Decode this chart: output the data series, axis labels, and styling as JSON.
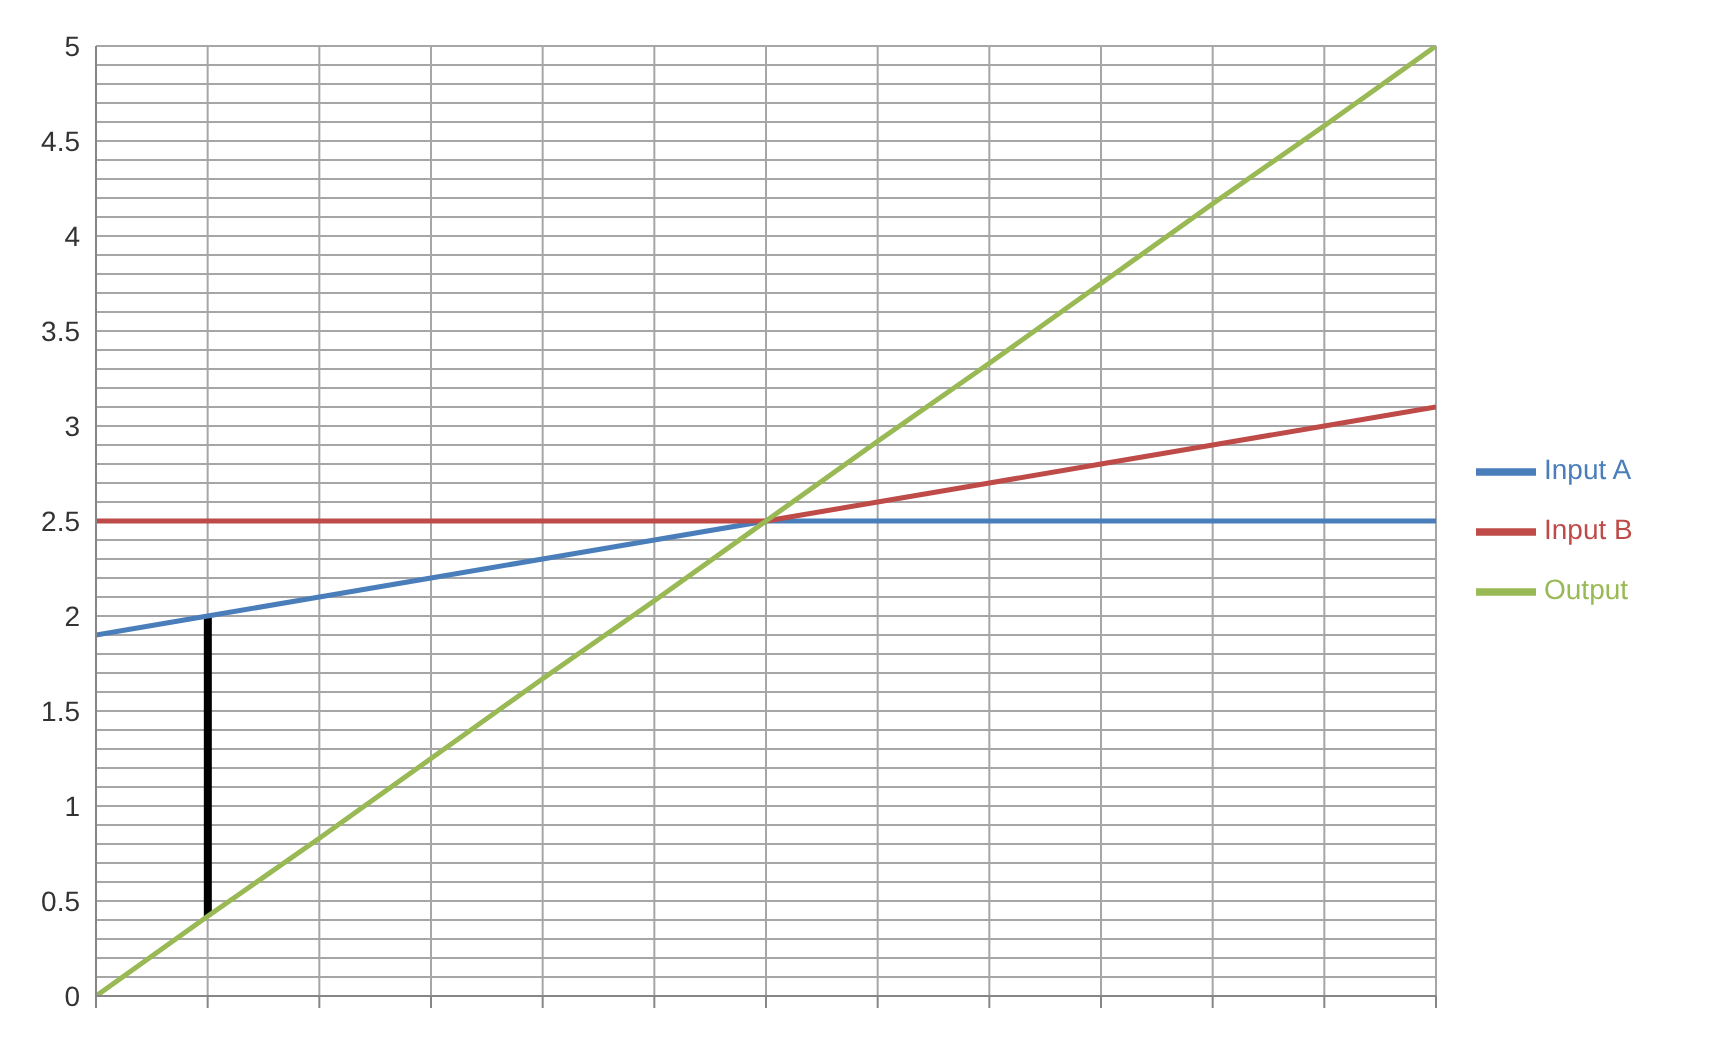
{
  "chart_data": {
    "type": "line",
    "categories": [
      null,
      null,
      null,
      null,
      null,
      null,
      null,
      null,
      null,
      null,
      null,
      null,
      null
    ],
    "series": [
      {
        "name": "Input A",
        "color": "#4a7ebb",
        "values": [
          1.9,
          2.0,
          2.1,
          2.2,
          2.3,
          2.4,
          2.5,
          2.5,
          2.5,
          2.5,
          2.5,
          2.5,
          2.5
        ]
      },
      {
        "name": "Input B",
        "color": "#be4b48",
        "values": [
          2.5,
          2.5,
          2.5,
          2.5,
          2.5,
          2.5,
          2.5,
          2.6,
          2.7,
          2.8,
          2.9,
          3.0,
          3.1
        ]
      },
      {
        "name": "Output",
        "color": "#98b954",
        "values": [
          0,
          0.42,
          0.83,
          1.25,
          1.67,
          2.08,
          2.5,
          2.92,
          3.33,
          3.75,
          4.17,
          4.58,
          5
        ]
      },
      {
        "type": "bar",
        "color": "#000000",
        "base": [
          null,
          0.42,
          null,
          null,
          null,
          null,
          null,
          null,
          null,
          null,
          null,
          null,
          null
        ],
        "values": [
          null,
          1.58,
          null,
          null,
          null,
          null,
          null,
          null,
          null,
          null,
          null,
          null,
          null
        ]
      }
    ],
    "ylim": [
      0,
      5
    ],
    "yticks": [
      0,
      {
        "value": 0.1,
        "label": null
      },
      {
        "value": 0.2,
        "label": null
      },
      {
        "value": 0.3,
        "label": null
      },
      {
        "value": 0.4,
        "label": null
      },
      0.5,
      {
        "value": 0.6,
        "label": null
      },
      {
        "value": 0.7,
        "label": null
      },
      {
        "value": 0.8,
        "label": null
      },
      {
        "value": 0.9,
        "label": null
      },
      1,
      {
        "value": 1.1,
        "label": null
      },
      {
        "value": 1.2,
        "label": null
      },
      {
        "value": 1.3,
        "label": null
      },
      {
        "value": 1.4,
        "label": null
      },
      1.5,
      {
        "value": 1.6,
        "label": null
      },
      {
        "value": 1.7,
        "label": null
      },
      {
        "value": 1.8,
        "label": null
      },
      {
        "value": 1.9,
        "label": null
      },
      2,
      {
        "value": 2.1,
        "label": null
      },
      {
        "value": 2.2,
        "label": null
      },
      {
        "value": 2.3,
        "label": null
      },
      {
        "value": 2.4,
        "label": null
      },
      2.5,
      {
        "value": 2.6,
        "label": null
      },
      {
        "value": 2.7,
        "label": null
      },
      {
        "value": 2.8,
        "label": null
      },
      {
        "value": 2.9,
        "label": null
      },
      3,
      {
        "value": 3.1,
        "label": null
      },
      {
        "value": 3.2,
        "label": null
      },
      {
        "value": 3.3,
        "label": null
      },
      {
        "value": 3.4,
        "label": null
      },
      3.5,
      {
        "value": 3.6,
        "label": null
      },
      {
        "value": 3.7,
        "label": null
      },
      {
        "value": 3.8,
        "label": null
      },
      {
        "value": 3.9,
        "label": null
      },
      4,
      {
        "value": 4.1,
        "label": null
      },
      {
        "value": 4.2,
        "label": null
      },
      {
        "value": 4.3,
        "label": null
      },
      {
        "value": 4.4,
        "label": null
      },
      4.5,
      {
        "value": 4.6,
        "label": null
      },
      {
        "value": 4.7,
        "label": null
      },
      {
        "value": 4.8,
        "label": null
      },
      {
        "value": 4.9,
        "label": null
      },
      5
    ],
    "grid": true,
    "legend": "right",
    "marker": "none"
  }
}
